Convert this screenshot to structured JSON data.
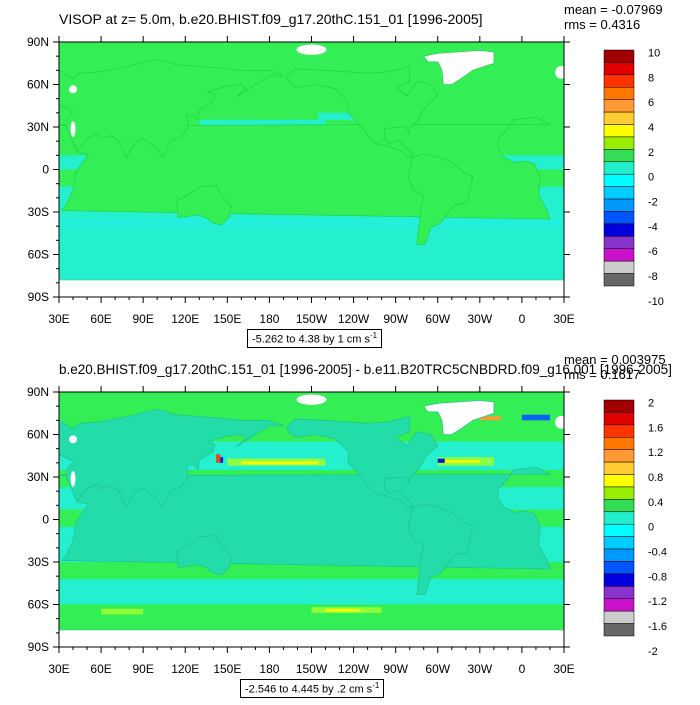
{
  "colors": {
    "ocean_base": "#33ee55",
    "ocean_cyan": "#22eedd",
    "ocean_light": "#99ff33",
    "land": "#ffffff",
    "frame": "#000000"
  },
  "chart_data": [
    {
      "type": "heatmap",
      "title": "VISOP at z=   5.0m, b.e20.BHIST.f09_g17.20thC.151_01 [1996-2005]",
      "stats": {
        "mean": "mean = -0.07969",
        "rms": "rms = 0.4316"
      },
      "x_ticks": [
        "30E",
        "60E",
        "90E",
        "120E",
        "150E",
        "180",
        "150W",
        "120W",
        "90W",
        "60W",
        "30W",
        "0",
        "30E"
      ],
      "y_ticks": [
        "90N",
        "60N",
        "30N",
        "0",
        "30S",
        "60S",
        "90S"
      ],
      "xlim": [
        30,
        390
      ],
      "ylim": [
        -90,
        90
      ],
      "range_label": {
        "text": "-5.262 to 4.38 by 1 cm s",
        "unit_exp": "-1"
      },
      "colorbar": {
        "labels": [
          "10",
          "8",
          "6",
          "4",
          "2",
          "0",
          "-2",
          "-4",
          "-6",
          "-8",
          "-10"
        ],
        "colors": [
          "#a00000",
          "#e00000",
          "#ff3300",
          "#ff7700",
          "#ff9933",
          "#ffcc33",
          "#ffff00",
          "#99ee00",
          "#33dd55",
          "#22eecc",
          "#00ffff",
          "#00ccff",
          "#0099ff",
          "#0055ff",
          "#0000dd",
          "#8833cc",
          "#cc11cc",
          "#cccccc",
          "#666666"
        ]
      }
    },
    {
      "type": "heatmap",
      "title": "b.e20.BHIST.f09_g17.20thC.151_01 [1996-2005] - b.e11.B20TRC5CNBDRD.f09_g16.001 [1996-2005]",
      "stats": {
        "mean": "mean = 0.003975",
        "rms": "rms = 0.1617"
      },
      "x_ticks": [
        "30E",
        "60E",
        "90E",
        "120E",
        "150E",
        "180",
        "150W",
        "120W",
        "90W",
        "60W",
        "30W",
        "0",
        "30E"
      ],
      "y_ticks": [
        "90N",
        "60N",
        "30N",
        "0",
        "30S",
        "60S",
        "90S"
      ],
      "xlim": [
        30,
        390
      ],
      "ylim": [
        -90,
        90
      ],
      "range_label": {
        "text": "-2.546 to 4.445 by .2 cm s",
        "unit_exp": "-1"
      },
      "colorbar": {
        "labels": [
          "2",
          "1.6",
          "1.2",
          "0.8",
          "0.4",
          "0",
          "-0.4",
          "-0.8",
          "-1.2",
          "-1.6",
          "-2"
        ],
        "colors": [
          "#a00000",
          "#e00000",
          "#ff3300",
          "#ff7700",
          "#ff9933",
          "#ffcc33",
          "#ffff00",
          "#99ee00",
          "#33dd55",
          "#22eecc",
          "#00ffff",
          "#00ccff",
          "#0099ff",
          "#0055ff",
          "#0000dd",
          "#8833cc",
          "#cc11cc",
          "#cccccc",
          "#666666"
        ]
      }
    }
  ]
}
